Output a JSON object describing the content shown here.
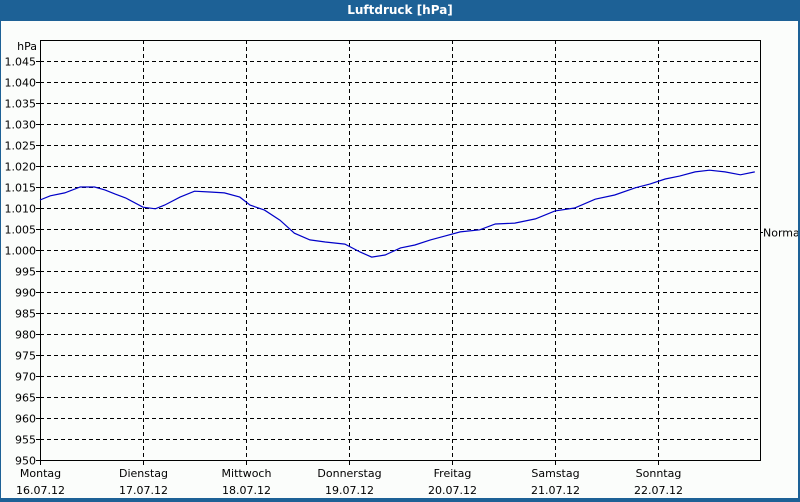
{
  "window": {
    "title": "Luftdruck [hPa]",
    "title_bar_color": "#1d6196",
    "background": "#fbfdfb"
  },
  "chart_data": {
    "type": "line",
    "title": "Luftdruck [hPa]",
    "xlabel": "",
    "ylabel": "hPa",
    "ylim": [
      950,
      1050
    ],
    "y_ticks": [
      "1.045",
      "1.040",
      "1.035",
      "1.030",
      "1.025",
      "1.020",
      "1.015",
      "1.010",
      "1.005",
      "1.000",
      "995",
      "990",
      "985",
      "980",
      "975",
      "970",
      "965",
      "960",
      "955",
      "950"
    ],
    "y_tick_values": [
      1045,
      1040,
      1035,
      1030,
      1025,
      1020,
      1015,
      1010,
      1005,
      1000,
      995,
      990,
      985,
      980,
      975,
      970,
      965,
      960,
      955,
      950
    ],
    "grid": true,
    "grid_style": "dashed",
    "x_categories": [
      {
        "day": "Montag",
        "date": "16.07.12"
      },
      {
        "day": "Dienstag",
        "date": "17.07.12"
      },
      {
        "day": "Mittwoch",
        "date": "18.07.12"
      },
      {
        "day": "Donnerstag",
        "date": "19.07.12"
      },
      {
        "day": "Freitag",
        "date": "20.07.12"
      },
      {
        "day": "Samstag",
        "date": "21.07.12"
      },
      {
        "day": "Sonntag",
        "date": "22.07.12"
      }
    ],
    "reference_marker": {
      "label": "Normal",
      "value": 1004.3
    },
    "series": [
      {
        "name": "Luftdruck",
        "color": "#0000c8",
        "x_days": [
          0.0,
          0.1,
          0.24,
          0.39,
          0.53,
          0.63,
          0.73,
          0.83,
          1.0,
          1.12,
          1.21,
          1.36,
          1.5,
          1.65,
          1.79,
          1.94,
          2.04,
          2.18,
          2.33,
          2.47,
          2.62,
          2.77,
          2.96,
          3.11,
          3.22,
          3.35,
          3.5,
          3.64,
          3.79,
          3.93,
          4.08,
          4.27,
          4.42,
          4.61,
          4.81,
          5.0,
          5.19,
          5.39,
          5.58,
          5.78,
          5.92,
          6.07,
          6.21,
          6.36,
          6.5,
          6.65,
          6.8,
          6.94
        ],
        "values": [
          1011.9,
          1012.9,
          1013.6,
          1015.0,
          1015.0,
          1014.3,
          1013.3,
          1012.4,
          1010.2,
          1009.8,
          1010.7,
          1012.6,
          1014.0,
          1013.8,
          1013.6,
          1012.6,
          1010.7,
          1009.5,
          1007.1,
          1004.0,
          1002.4,
          1001.9,
          1001.4,
          999.5,
          998.3,
          998.8,
          1000.5,
          1001.2,
          1002.4,
          1003.3,
          1004.3,
          1004.8,
          1006.2,
          1006.4,
          1007.4,
          1009.3,
          1010.0,
          1012.1,
          1013.1,
          1014.8,
          1015.7,
          1016.9,
          1017.6,
          1018.6,
          1019.0,
          1018.6,
          1017.9,
          1018.6
        ]
      }
    ],
    "legend": "none"
  }
}
